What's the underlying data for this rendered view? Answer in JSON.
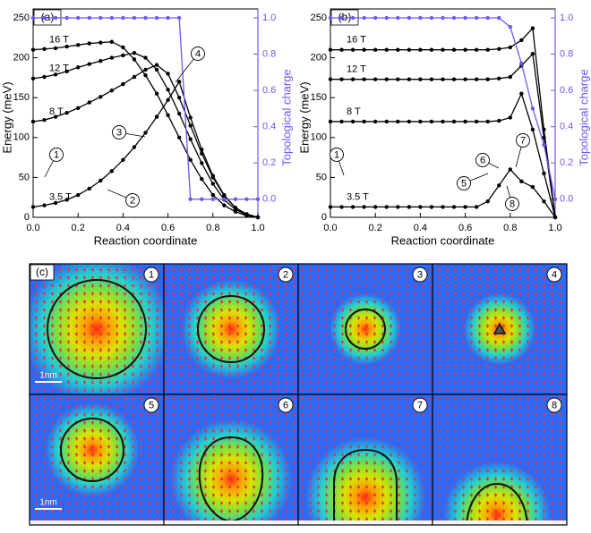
{
  "chart_data": [
    {
      "type": "line",
      "panel_label": "(a)",
      "xlabel": "Reaction coordinate",
      "ylabel": "Energy (meV)",
      "y2label": "Topological charge",
      "x": [
        0,
        0.05,
        0.1,
        0.15,
        0.2,
        0.25,
        0.3,
        0.35,
        0.4,
        0.45,
        0.5,
        0.55,
        0.6,
        0.65,
        0.7,
        0.75,
        0.8,
        0.85,
        0.9,
        0.95,
        1
      ],
      "series": [
        {
          "name": "16 T",
          "color": "#000000",
          "values": [
            210,
            211,
            212,
            214,
            216,
            218,
            219,
            220,
            213,
            198,
            178,
            155,
            128,
            100,
            72,
            48,
            28,
            15,
            7,
            2,
            0
          ]
        },
        {
          "name": "12 T",
          "color": "#000000",
          "values": [
            174,
            176,
            179,
            183,
            188,
            192,
            196,
            200,
            203,
            206,
            200,
            185,
            160,
            130,
            98,
            68,
            42,
            22,
            10,
            3,
            0
          ]
        },
        {
          "name": "8 T",
          "color": "#000000",
          "values": [
            120,
            122,
            126,
            131,
            137,
            144,
            151,
            159,
            167,
            176,
            185,
            191,
            180,
            150,
            115,
            80,
            50,
            27,
            12,
            4,
            0
          ]
        },
        {
          "name": "3.5 T",
          "color": "#000000",
          "values": [
            13,
            15,
            18,
            22,
            28,
            36,
            46,
            58,
            72,
            88,
            106,
            126,
            147,
            170,
            125,
            85,
            52,
            28,
            12,
            4,
            0
          ]
        },
        {
          "color": "#7455f0",
          "axis": "y2",
          "values": [
            1,
            1,
            1,
            1,
            1,
            1,
            1,
            1,
            1,
            1,
            1,
            1,
            1,
            1,
            0,
            0,
            0,
            0,
            0,
            0,
            0
          ]
        }
      ],
      "annotations": [
        "1",
        "2",
        "3",
        "4"
      ],
      "xlim": [
        0,
        1
      ],
      "xticks": [
        {
          "value": 0,
          "label": "0.0"
        },
        0.2,
        0.4,
        0.6,
        0.8,
        {
          "value": 1,
          "label": "1.0"
        }
      ],
      "ylim": [
        0,
        250
      ],
      "yticks": [
        0,
        50,
        100,
        150,
        200,
        250
      ],
      "y2lim": [
        -0.1,
        1.0
      ],
      "y2ticks": [
        {
          "value": 0,
          "label": "0.0"
        },
        0.2,
        0.4,
        0.6,
        0.8,
        {
          "value": 1,
          "label": "1.0"
        }
      ]
    },
    {
      "type": "line",
      "panel_label": "(b)",
      "xlabel": "Reaction coordinate",
      "ylabel": "Energy (meV)",
      "y2label": "Topological charge",
      "x": [
        0,
        0.05,
        0.1,
        0.15,
        0.2,
        0.25,
        0.3,
        0.35,
        0.4,
        0.45,
        0.5,
        0.55,
        0.6,
        0.65,
        0.7,
        0.75,
        0.8,
        0.85,
        0.9,
        0.95,
        1
      ],
      "series": [
        {
          "name": "16 T",
          "color": "#000000",
          "values": [
            210,
            210,
            210,
            210,
            210,
            210,
            210,
            210,
            210,
            210,
            210,
            210,
            210,
            210,
            210,
            211,
            213,
            222,
            237,
            110,
            0
          ]
        },
        {
          "name": "12 T",
          "color": "#000000",
          "values": [
            173,
            173,
            173,
            173,
            173,
            173,
            173,
            173,
            173,
            173,
            173,
            173,
            173,
            173,
            173,
            174,
            176,
            190,
            205,
            100,
            0
          ]
        },
        {
          "name": "8 T",
          "color": "#000000",
          "values": [
            120,
            120,
            120,
            120,
            120,
            120,
            120,
            120,
            120,
            120,
            120,
            120,
            120,
            120,
            120,
            121,
            125,
            155,
            110,
            55,
            0
          ]
        },
        {
          "name": "3.5 T",
          "color": "#000000",
          "values": [
            13,
            13,
            13,
            13,
            13,
            13,
            13,
            13,
            13,
            13,
            13,
            13,
            13,
            13,
            20,
            40,
            60,
            45,
            38,
            20,
            0
          ]
        },
        {
          "color": "#7455f0",
          "axis": "y2",
          "values": [
            1,
            1,
            1,
            1,
            1,
            1,
            1,
            1,
            1,
            1,
            1,
            1,
            1,
            1,
            1,
            1,
            0.95,
            0.75,
            0.5,
            0.3,
            0
          ]
        }
      ],
      "annotations": [
        "1",
        "5",
        "6",
        "7",
        "8"
      ],
      "xlim": [
        0,
        1
      ],
      "xticks": [
        {
          "value": 0,
          "label": "0.0"
        },
        0.2,
        0.4,
        0.6,
        0.8,
        {
          "value": 1,
          "label": "1.0"
        }
      ],
      "ylim": [
        0,
        250
      ],
      "yticks": [
        0,
        50,
        100,
        150,
        200,
        250
      ],
      "y2lim": [
        -0.1,
        1.0
      ],
      "y2ticks": [
        {
          "value": 0,
          "label": "0.0"
        },
        0.2,
        0.4,
        0.6,
        0.8,
        {
          "value": 1,
          "label": "1.0"
        }
      ]
    }
  ],
  "panel_c": {
    "label": "(c)",
    "frames": [
      "1",
      "2",
      "3",
      "4",
      "5",
      "6",
      "7",
      "8"
    ],
    "scale_bars": [
      "1nm",
      "1nm"
    ]
  }
}
